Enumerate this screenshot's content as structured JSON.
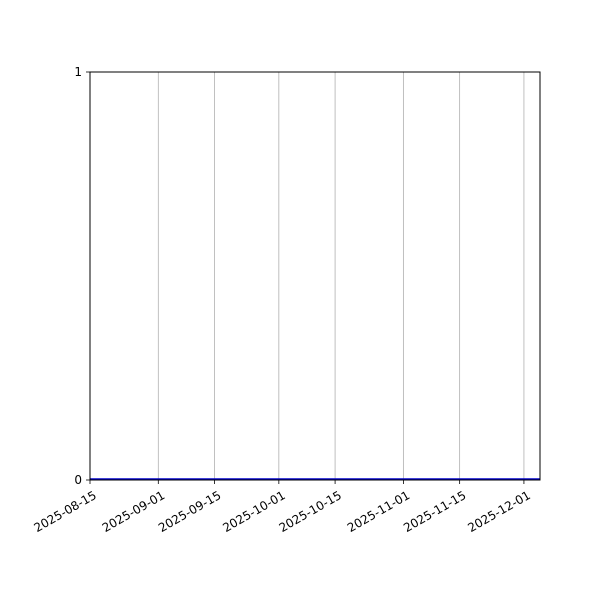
{
  "chart_data": {
    "type": "line",
    "title": "",
    "xlabel": "",
    "ylabel": "",
    "xlim": [
      "2025-08-15",
      "2025-12-05"
    ],
    "ylim": [
      0,
      1
    ],
    "x_ticks": [
      "2025-08-15",
      "2025-09-01",
      "2025-09-15",
      "2025-10-01",
      "2025-10-15",
      "2025-11-01",
      "2025-11-15",
      "2025-12-01"
    ],
    "y_ticks": [
      "0",
      "1"
    ],
    "grid": "x-only",
    "series": [
      {
        "x": [
          "2025-08-15",
          "2025-12-05"
        ],
        "y": [
          0,
          0
        ],
        "color": "#0000cc"
      }
    ]
  }
}
